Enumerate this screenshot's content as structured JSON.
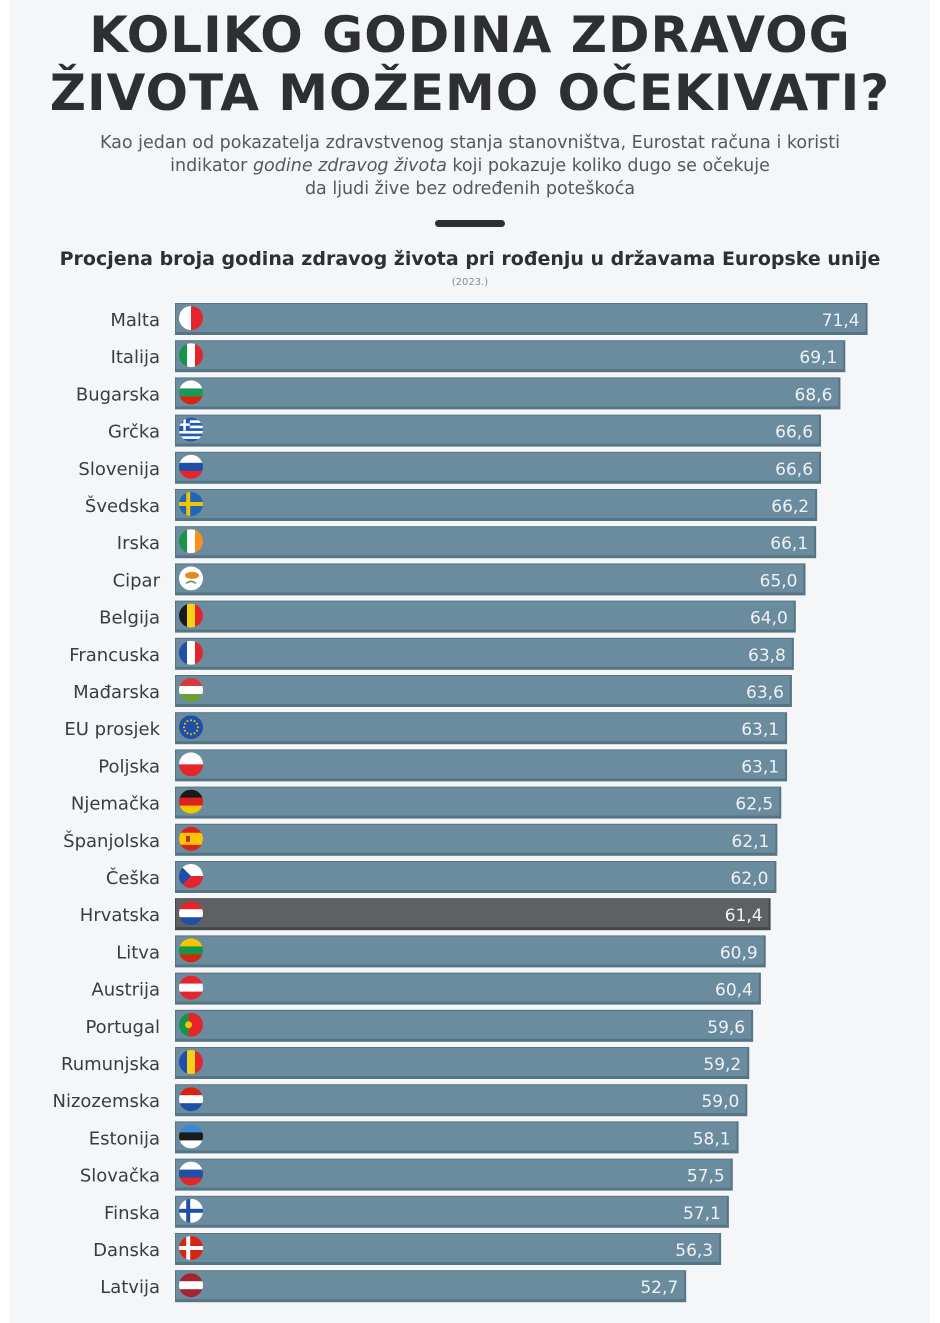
{
  "header": {
    "title_line1": "KOLIKO GODINA ZDRAVOG",
    "title_line2": "ŽIVOTA MOŽEMO OČEKIVATI?",
    "subtitle_line1": "Kao jedan od pokazatelja zdravstvenog stanja stanovništva, Eurostat računa i koristi",
    "subtitle_line2_pre": "indikator ",
    "subtitle_line2_em": "godine zdravog života",
    "subtitle_line2_post": " koji pokazuje koliko dugo se očekuje",
    "subtitle_line3": "da ljudi žive bez određenih poteškoća"
  },
  "colors": {
    "bar": "#6b8c9e",
    "bar_dark_edge": "#557484",
    "highlight_bar": "#5d6163",
    "highlight_edge": "#45484a",
    "text": "#2d2f33"
  },
  "chart_data": {
    "type": "bar",
    "orientation": "horizontal",
    "title": "Procjena broja godina zdravog života pri rođenju u državama Europske unije",
    "subtitle": "(2023.)",
    "xlabel": "",
    "ylabel": "",
    "xlim": [
      0,
      72
    ],
    "grid": false,
    "highlight": "Hrvatska",
    "categories": [
      "Malta",
      "Italija",
      "Bugarska",
      "Grčka",
      "Slovenija",
      "Švedska",
      "Irska",
      "Cipar",
      "Belgija",
      "Francuska",
      "Mađarska",
      "EU prosjek",
      "Poljska",
      "Njemačka",
      "Španjolska",
      "Češka",
      "Hrvatska",
      "Litva",
      "Austrija",
      "Portugal",
      "Rumunjska",
      "Nizozemska",
      "Estonija",
      "Slovačka",
      "Finska",
      "Danska",
      "Latvija"
    ],
    "values": [
      71.4,
      69.1,
      68.6,
      66.6,
      66.6,
      66.2,
      66.1,
      65.0,
      64.0,
      63.8,
      63.6,
      63.1,
      63.1,
      62.5,
      62.1,
      62.0,
      61.4,
      60.9,
      60.4,
      59.6,
      59.2,
      59.0,
      58.1,
      57.5,
      57.1,
      56.3,
      52.7
    ],
    "value_labels": [
      "71,4",
      "69,1",
      "68,6",
      "66,6",
      "66,6",
      "66,2",
      "66,1",
      "65,0",
      "64,0",
      "63,8",
      "63,6",
      "63,1",
      "63,1",
      "62,5",
      "62,1",
      "62,0",
      "61,4",
      "60,9",
      "60,4",
      "59,6",
      "59,2",
      "59,0",
      "58,1",
      "57,5",
      "57,1",
      "56,3",
      "52,7"
    ],
    "flags": [
      {
        "icon": "malta-flag-icon",
        "type": "v",
        "colors": [
          "#ffffff",
          "#e4262c"
        ]
      },
      {
        "icon": "italy-flag-icon",
        "type": "v",
        "colors": [
          "#179447",
          "#ffffff",
          "#e4262c"
        ]
      },
      {
        "icon": "bulgaria-flag-icon",
        "type": "h",
        "colors": [
          "#ffffff",
          "#1a9a5a",
          "#d62612"
        ]
      },
      {
        "icon": "greece-flag-icon",
        "type": "greece",
        "colors": [
          "#1f5bb4",
          "#ffffff"
        ]
      },
      {
        "icon": "slovenia-flag-icon",
        "type": "h",
        "colors": [
          "#ffffff",
          "#1d4fa8",
          "#e4262c"
        ]
      },
      {
        "icon": "sweden-flag-icon",
        "type": "nordic",
        "colors": [
          "#1f66b5",
          "#f6c500"
        ]
      },
      {
        "icon": "ireland-flag-icon",
        "type": "v",
        "colors": [
          "#179447",
          "#ffffff",
          "#f7901e"
        ]
      },
      {
        "icon": "cyprus-flag-icon",
        "type": "cyprus",
        "colors": [
          "#ffffff",
          "#e38b1f"
        ]
      },
      {
        "icon": "belgium-flag-icon",
        "type": "v",
        "colors": [
          "#1a1a1a",
          "#f7d117",
          "#e4262c"
        ]
      },
      {
        "icon": "france-flag-icon",
        "type": "v",
        "colors": [
          "#1f4fa8",
          "#ffffff",
          "#e4262c"
        ]
      },
      {
        "icon": "hungary-flag-icon",
        "type": "h",
        "colors": [
          "#d8393a",
          "#ffffff",
          "#6aa03a"
        ]
      },
      {
        "icon": "eu-flag-icon",
        "type": "eu",
        "colors": [
          "#1f4fa8",
          "#f6c500"
        ]
      },
      {
        "icon": "poland-flag-icon",
        "type": "h2",
        "colors": [
          "#ffffff",
          "#e4262c"
        ]
      },
      {
        "icon": "germany-flag-icon",
        "type": "h",
        "colors": [
          "#1a1a1a",
          "#dd1f1f",
          "#f7c600"
        ]
      },
      {
        "icon": "spain-flag-icon",
        "type": "spain",
        "colors": [
          "#d8231c",
          "#f7c600"
        ]
      },
      {
        "icon": "czechia-flag-icon",
        "type": "czech",
        "colors": [
          "#ffffff",
          "#e4262c",
          "#1f4fa8"
        ]
      },
      {
        "icon": "croatia-flag-icon",
        "type": "h",
        "colors": [
          "#e4262c",
          "#ffffff",
          "#1f4fa8"
        ]
      },
      {
        "icon": "lithuania-flag-icon",
        "type": "h",
        "colors": [
          "#f7c600",
          "#179447",
          "#d62612"
        ]
      },
      {
        "icon": "austria-flag-icon",
        "type": "h",
        "colors": [
          "#e4262c",
          "#ffffff",
          "#e4262c"
        ]
      },
      {
        "icon": "portugal-flag-icon",
        "type": "vp",
        "colors": [
          "#179447",
          "#e4262c"
        ]
      },
      {
        "icon": "romania-flag-icon",
        "type": "v",
        "colors": [
          "#1f4fa8",
          "#f7d117",
          "#e4262c"
        ]
      },
      {
        "icon": "netherlands-flag-icon",
        "type": "h",
        "colors": [
          "#d62612",
          "#ffffff",
          "#1f4fa8"
        ]
      },
      {
        "icon": "estonia-flag-icon",
        "type": "h",
        "colors": [
          "#3a88d0",
          "#1a1a1a",
          "#ffffff"
        ]
      },
      {
        "icon": "slovakia-flag-icon",
        "type": "h",
        "colors": [
          "#ffffff",
          "#1f4fa8",
          "#e4262c"
        ]
      },
      {
        "icon": "finland-flag-icon",
        "type": "nordic",
        "colors": [
          "#ffffff",
          "#1f4fa8"
        ]
      },
      {
        "icon": "denmark-flag-icon",
        "type": "nordic",
        "colors": [
          "#d62612",
          "#ffffff"
        ]
      },
      {
        "icon": "latvia-flag-icon",
        "type": "h",
        "colors": [
          "#a3232f",
          "#ffffff",
          "#a3232f"
        ]
      }
    ]
  }
}
